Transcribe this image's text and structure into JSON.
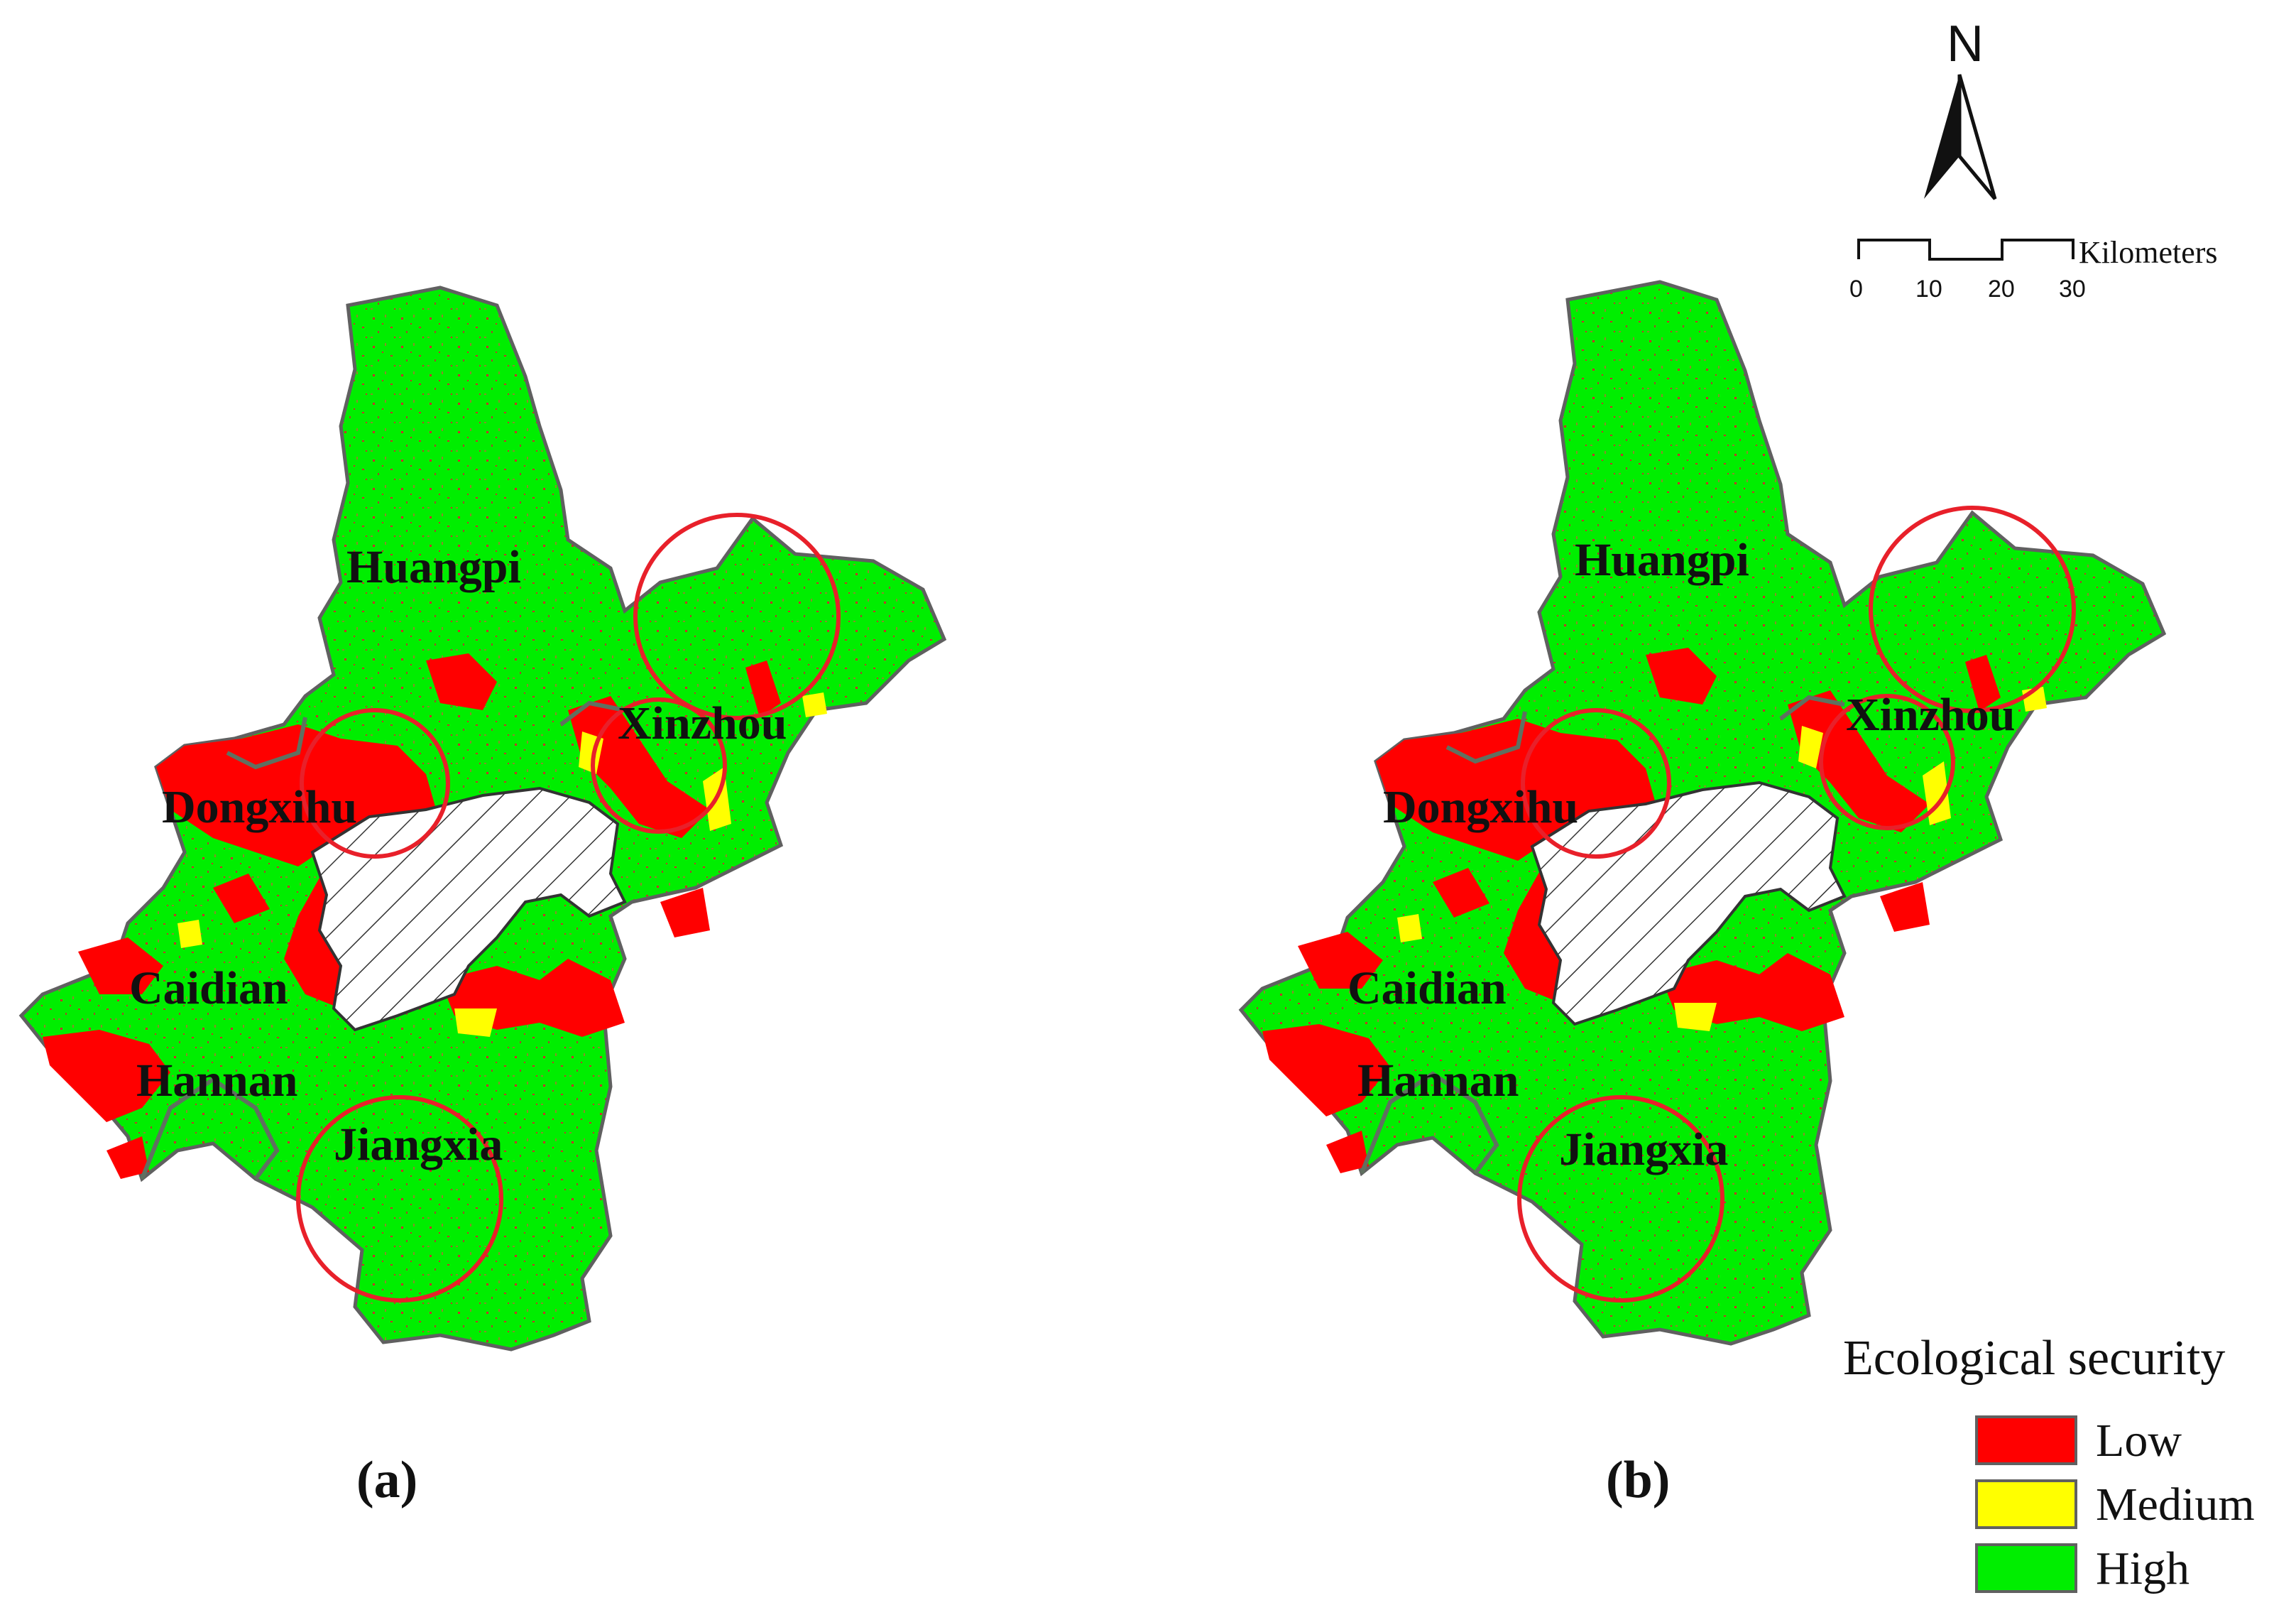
{
  "panels": [
    {
      "label": "(a)",
      "districts": {
        "huangpi": "Huangpi",
        "xinzhou": "Xinzhou",
        "dongxihu": "Dongxihu",
        "caidian": "Caidian",
        "hannan": "Hannan",
        "jiangxia": "Jiangxia"
      }
    },
    {
      "label": "(b)",
      "districts": {
        "huangpi": "Huangpi",
        "xinzhou": "Xinzhou",
        "dongxihu": "Dongxihu",
        "caidian": "Caidian",
        "hannan": "Hannan",
        "jiangxia": "Jiangxia"
      }
    }
  ],
  "north_arrow": {
    "label": "N"
  },
  "scale_bar": {
    "unit": "Kilometers",
    "ticks": [
      "0",
      "10",
      "20",
      "30"
    ]
  },
  "legend": {
    "title": "Ecological security",
    "items": [
      {
        "label": "Low",
        "color": "#ff0000"
      },
      {
        "label": "Medium",
        "color": "#ffff00"
      },
      {
        "label": "High",
        "color": "#00ee00"
      }
    ]
  },
  "colors": {
    "high": "#00ee00",
    "low": "#ff0000",
    "medium": "#ffff00",
    "outline": "#606060",
    "highlight_circle": "#e8202a"
  }
}
